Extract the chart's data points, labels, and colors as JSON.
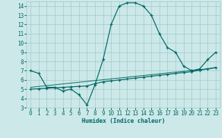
{
  "xlabel": "Humidex (Indice chaleur)",
  "bg_color": "#cce8e8",
  "grid_color": "#9fc8c8",
  "line_color": "#006666",
  "xlim": [
    -0.5,
    23.5
  ],
  "ylim": [
    3,
    14.5
  ],
  "xticks": [
    0,
    1,
    2,
    3,
    4,
    5,
    6,
    7,
    8,
    9,
    10,
    11,
    12,
    13,
    14,
    15,
    16,
    17,
    18,
    19,
    20,
    21,
    22,
    23
  ],
  "yticks": [
    3,
    4,
    5,
    6,
    7,
    8,
    9,
    10,
    11,
    12,
    13,
    14
  ],
  "line1_x": [
    0,
    1,
    2,
    3,
    4,
    5,
    6,
    7,
    8,
    9,
    10,
    11,
    12,
    13,
    14,
    15,
    16,
    17,
    18,
    19,
    20,
    21,
    22,
    23
  ],
  "line1_y": [
    7.0,
    6.7,
    5.2,
    5.2,
    4.8,
    5.0,
    4.4,
    3.3,
    5.5,
    8.2,
    12.0,
    14.0,
    14.35,
    14.35,
    14.0,
    13.0,
    11.0,
    9.5,
    9.0,
    7.5,
    7.0,
    7.2,
    8.2,
    9.0
  ],
  "line2_x": [
    0,
    1,
    2,
    3,
    4,
    5,
    6,
    7,
    8,
    9,
    10,
    11,
    12,
    13,
    14,
    15,
    16,
    17,
    18,
    19,
    20,
    21,
    22,
    23
  ],
  "line2_y": [
    5.0,
    5.05,
    5.1,
    5.15,
    5.2,
    5.25,
    5.3,
    5.35,
    5.6,
    5.8,
    5.9,
    6.0,
    6.1,
    6.2,
    6.3,
    6.4,
    6.5,
    6.6,
    6.7,
    6.8,
    6.9,
    7.05,
    7.2,
    7.35
  ],
  "line3_x": [
    0,
    23
  ],
  "line3_y": [
    5.2,
    7.3
  ]
}
